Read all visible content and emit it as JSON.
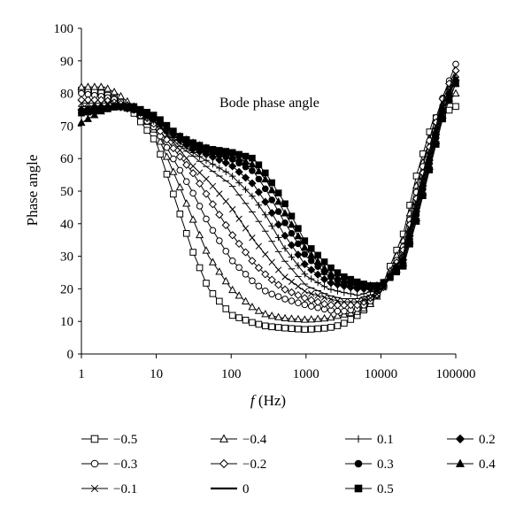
{
  "chart_data": {
    "type": "line",
    "title": "",
    "annotation": "Bode phase angle",
    "xlabel_italic": "f",
    "xlabel_rest": " (Hz)",
    "ylabel": "Phase angle",
    "xscale": "log",
    "xlim": [
      1,
      100000
    ],
    "ylim": [
      0,
      100
    ],
    "grid": false,
    "legend_position": "bottom",
    "x_ticks": [
      1,
      10,
      100,
      1000,
      10000,
      100000
    ],
    "x_tick_labels": [
      "1",
      "10",
      "100",
      "1000",
      "10000",
      "100000"
    ],
    "y_ticks": [
      0,
      10,
      20,
      30,
      40,
      50,
      60,
      70,
      80,
      90,
      100
    ],
    "y_tick_labels": [
      "0",
      "10",
      "20",
      "30",
      "40",
      "50",
      "60",
      "70",
      "80",
      "90",
      "100"
    ],
    "x": [
      1,
      2,
      3,
      5,
      10,
      20,
      30,
      50,
      100,
      200,
      300,
      500,
      1000,
      2000,
      3000,
      5000,
      7000,
      10000,
      20000,
      30000,
      50000,
      70000,
      100000
    ],
    "series": [
      {
        "name": "−0.5",
        "marker": "square-open",
        "values": [
          81,
          80,
          78,
          74,
          65,
          44,
          32,
          20,
          12,
          9.5,
          8.5,
          8,
          7.5,
          8,
          9,
          12,
          15,
          20,
          37,
          55,
          72,
          74,
          76
        ]
      },
      {
        "name": "−0.4",
        "marker": "triangle-open",
        "values": [
          82,
          82,
          80,
          76,
          68,
          52,
          42,
          30,
          20,
          14,
          12,
          11,
          10.5,
          11,
          12,
          13,
          15,
          19,
          35,
          52,
          70,
          76,
          80
        ]
      },
      {
        "name": "−0.3",
        "marker": "circle-open",
        "values": [
          80,
          79,
          78,
          75,
          69,
          57,
          50,
          40,
          29,
          22,
          19,
          17,
          15,
          13.5,
          13,
          14,
          16,
          19,
          33,
          50,
          70,
          80,
          89
        ]
      },
      {
        "name": "−0.2",
        "marker": "diamond-open",
        "values": [
          78,
          78,
          77,
          76,
          70,
          61,
          56,
          48,
          37,
          28,
          24,
          20,
          17,
          15,
          15,
          15,
          17,
          19,
          32,
          48,
          68,
          80,
          87
        ]
      },
      {
        "name": "−0.1",
        "marker": "x",
        "values": [
          77,
          77,
          77,
          75,
          71,
          63,
          58,
          53,
          45,
          35,
          30,
          24,
          19,
          17,
          16,
          16,
          17,
          19,
          31,
          47,
          67,
          79,
          86
        ]
      },
      {
        "name": "0",
        "marker": "dash",
        "values": [
          76,
          76,
          76,
          75,
          71,
          64,
          61,
          57,
          52,
          43,
          37,
          29,
          21,
          18,
          17,
          17,
          18,
          19,
          30,
          46,
          66,
          78,
          85
        ]
      },
      {
        "name": "0.1",
        "marker": "plus",
        "values": [
          75,
          76,
          76,
          75,
          71,
          65,
          62,
          59,
          55,
          48,
          42,
          33,
          24,
          20,
          19,
          18,
          19,
          20,
          30,
          45,
          65,
          77,
          85
        ]
      },
      {
        "name": "0.2",
        "marker": "diamond-filled",
        "values": [
          75,
          76,
          76,
          75,
          72,
          66,
          63,
          61,
          58,
          52,
          46,
          37,
          27,
          22,
          21,
          20,
          20,
          20,
          29,
          44,
          64,
          77,
          84
        ]
      },
      {
        "name": "0.3",
        "marker": "circle-filled",
        "values": [
          74,
          75,
          76,
          75,
          72,
          66,
          64,
          62,
          60,
          56,
          50,
          41,
          30,
          24,
          22,
          21,
          21,
          21,
          28,
          43,
          63,
          76,
          84
        ]
      },
      {
        "name": "0.4",
        "marker": "triangle-filled",
        "values": [
          71,
          75,
          76,
          75,
          72,
          67,
          65,
          63,
          61,
          58,
          53,
          44,
          32,
          25,
          23,
          21,
          21,
          21,
          28,
          42,
          62,
          75,
          83
        ]
      },
      {
        "name": "0.5",
        "marker": "square-filled",
        "values": [
          74,
          75,
          76,
          76,
          73,
          67,
          65,
          63,
          62,
          60,
          55,
          47,
          34,
          27,
          24,
          22,
          21,
          21,
          27,
          41,
          61,
          74,
          83
        ]
      }
    ],
    "legend_order": [
      "−0.5",
      "−0.4",
      "0.1",
      "0.2",
      "−0.3",
      "−0.2",
      "0.3",
      "0.4",
      "−0.1",
      "0",
      "0.5"
    ]
  }
}
